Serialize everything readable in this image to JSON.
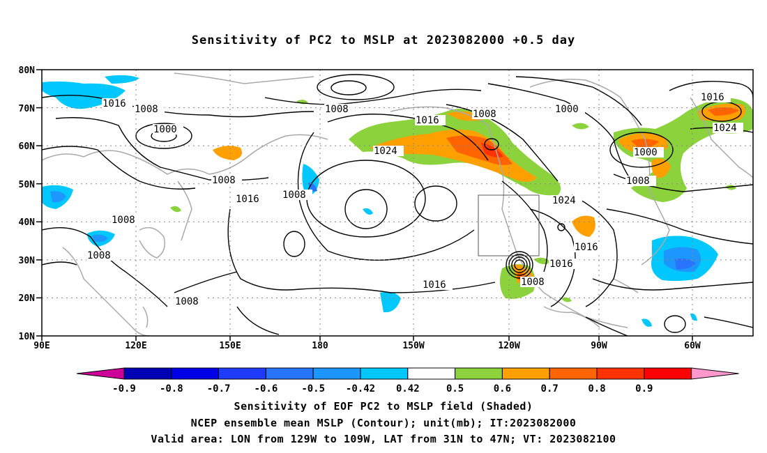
{
  "title": "Sensitivity of PC2 to MSLP at 2023082000 +0.5 day",
  "map": {
    "lat_labels": [
      "80N",
      "70N",
      "60N",
      "50N",
      "40N",
      "30N",
      "20N",
      "10N"
    ],
    "lon_labels": [
      "90E",
      "120E",
      "150E",
      "180",
      "150W",
      "120W",
      "90W",
      "60W"
    ],
    "contour_labels": [
      "1016",
      "1008",
      "1000",
      "1008",
      "1008",
      "1008",
      "1016",
      "1008",
      "1008",
      "1008",
      "1016",
      "1024",
      "1016",
      "1008",
      "1000",
      "1024",
      "1016",
      "1016",
      "1008",
      "1000",
      "1008",
      "1016",
      "1024"
    ],
    "valid_area": {
      "lon_from": "129W",
      "lon_to": "109W",
      "lat_from": "31N",
      "lat_to": "47N"
    }
  },
  "colorbar": {
    "labels": [
      "-0.9",
      "-0.8",
      "-0.7",
      "-0.6",
      "-0.5",
      "-0.42",
      "0.42",
      "0.5",
      "0.6",
      "0.7",
      "0.8",
      "0.9"
    ],
    "colors": {
      "min_arrow": "#cc0099",
      "bins": [
        "#0000b4",
        "#0000e6",
        "#1e3cff",
        "#2873ff",
        "#1e96ff",
        "#00c8ff",
        "#ffffff",
        "#8cd23c",
        "#ffa000",
        "#ff6400",
        "#ff3200",
        "#ff0000"
      ],
      "max_arrow": "#ff99cc"
    }
  },
  "footer": {
    "line1": "Sensitivity of EOF PC2 to MSLP field (Shaded)",
    "line2": "NCEP ensemble mean MSLP (Contour); unit(mb); IT:2023082000",
    "line3": "Valid area: LON from 129W to 109W, LAT from 31N to 47N; VT: 2023082100"
  }
}
